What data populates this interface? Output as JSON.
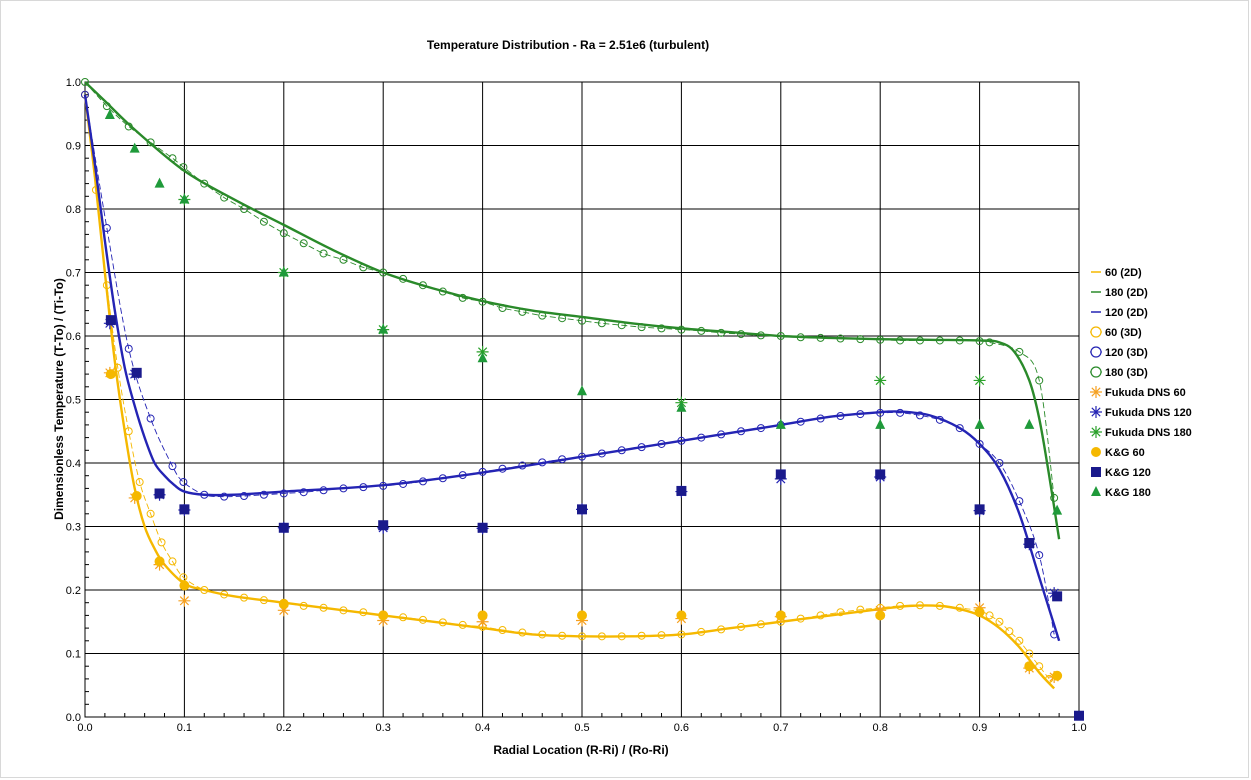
{
  "chart_data": {
    "type": "line",
    "title": "Temperature Distribution    -   Ra = 2.51e6 (turbulent)",
    "xlabel": "Radial Location (R-Ri) / (Ro-Ri)",
    "ylabel": "Dimensionless Temperature (T-To) / (Ti-To)",
    "xlim": [
      0,
      1
    ],
    "ylim": [
      0,
      1
    ],
    "x_ticks": [
      "0.0",
      "0.1",
      "0.2",
      "0.3",
      "0.4",
      "0.5",
      "0.6",
      "0.7",
      "0.8",
      "0.9",
      "1.0"
    ],
    "y_ticks": [
      "0.0",
      "0.1",
      "0.2",
      "0.3",
      "0.4",
      "0.5",
      "0.6",
      "0.7",
      "0.8",
      "0.9",
      "1.0"
    ],
    "grid": true,
    "legend_position": "right",
    "series": [
      {
        "name": "60 (2D)",
        "kind": "line",
        "color": "#f5b800",
        "x": [
          0,
          0.01,
          0.02,
          0.03,
          0.04,
          0.05,
          0.06,
          0.07,
          0.08,
          0.1,
          0.12,
          0.15,
          0.2,
          0.3,
          0.4,
          0.45,
          0.5,
          0.55,
          0.6,
          0.65,
          0.7,
          0.75,
          0.8,
          0.83,
          0.86,
          0.88,
          0.9,
          0.92,
          0.94,
          0.96,
          0.975
        ],
        "y": [
          0.98,
          0.85,
          0.7,
          0.56,
          0.45,
          0.36,
          0.3,
          0.265,
          0.24,
          0.21,
          0.2,
          0.19,
          0.18,
          0.16,
          0.14,
          0.13,
          0.127,
          0.127,
          0.13,
          0.14,
          0.15,
          0.16,
          0.17,
          0.175,
          0.175,
          0.17,
          0.16,
          0.14,
          0.11,
          0.07,
          0.045
        ]
      },
      {
        "name": "180 (2D)",
        "kind": "line",
        "color": "#2a8a2a",
        "x": [
          0,
          0.02,
          0.05,
          0.1,
          0.15,
          0.2,
          0.25,
          0.3,
          0.35,
          0.4,
          0.45,
          0.5,
          0.55,
          0.6,
          0.65,
          0.7,
          0.75,
          0.8,
          0.85,
          0.9,
          0.92,
          0.935,
          0.95,
          0.96,
          0.97,
          0.98
        ],
        "y": [
          1.0,
          0.97,
          0.925,
          0.86,
          0.815,
          0.775,
          0.735,
          0.7,
          0.675,
          0.655,
          0.64,
          0.63,
          0.62,
          0.612,
          0.606,
          0.6,
          0.597,
          0.595,
          0.594,
          0.593,
          0.59,
          0.575,
          0.53,
          0.47,
          0.38,
          0.28
        ]
      },
      {
        "name": "120 (2D)",
        "kind": "line",
        "color": "#2424b4",
        "x": [
          0,
          0.01,
          0.02,
          0.03,
          0.04,
          0.05,
          0.06,
          0.07,
          0.08,
          0.09,
          0.1,
          0.12,
          0.15,
          0.2,
          0.3,
          0.4,
          0.5,
          0.6,
          0.7,
          0.75,
          0.8,
          0.82,
          0.85,
          0.88,
          0.9,
          0.92,
          0.94,
          0.96,
          0.98
        ],
        "y": [
          0.98,
          0.87,
          0.75,
          0.64,
          0.55,
          0.49,
          0.44,
          0.4,
          0.38,
          0.365,
          0.355,
          0.35,
          0.35,
          0.355,
          0.365,
          0.385,
          0.41,
          0.435,
          0.46,
          0.473,
          0.48,
          0.481,
          0.475,
          0.455,
          0.43,
          0.39,
          0.32,
          0.22,
          0.12
        ]
      },
      {
        "name": "60 (3D)",
        "kind": "dashed-circles",
        "color": "#f5b800",
        "x": [
          0,
          0.011,
          0.022,
          0.033,
          0.044,
          0.055,
          0.066,
          0.077,
          0.088,
          0.099,
          0.12,
          0.14,
          0.16,
          0.18,
          0.2,
          0.22,
          0.24,
          0.26,
          0.28,
          0.3,
          0.32,
          0.34,
          0.36,
          0.38,
          0.4,
          0.42,
          0.44,
          0.46,
          0.48,
          0.5,
          0.52,
          0.54,
          0.56,
          0.58,
          0.6,
          0.62,
          0.64,
          0.66,
          0.68,
          0.7,
          0.72,
          0.74,
          0.76,
          0.78,
          0.8,
          0.82,
          0.84,
          0.86,
          0.88,
          0.9,
          0.91,
          0.92,
          0.93,
          0.94,
          0.95,
          0.96,
          0.97
        ],
        "y": [
          0.98,
          0.83,
          0.68,
          0.55,
          0.45,
          0.37,
          0.32,
          0.275,
          0.245,
          0.22,
          0.2,
          0.193,
          0.188,
          0.184,
          0.18,
          0.175,
          0.172,
          0.168,
          0.165,
          0.16,
          0.157,
          0.153,
          0.149,
          0.145,
          0.142,
          0.137,
          0.133,
          0.13,
          0.128,
          0.127,
          0.127,
          0.127,
          0.128,
          0.129,
          0.13,
          0.134,
          0.138,
          0.142,
          0.146,
          0.15,
          0.155,
          0.16,
          0.165,
          0.169,
          0.172,
          0.175,
          0.176,
          0.175,
          0.172,
          0.167,
          0.16,
          0.15,
          0.135,
          0.12,
          0.1,
          0.08,
          0.06
        ]
      },
      {
        "name": "120 (3D)",
        "kind": "dashed-circles",
        "color": "#2424b4",
        "x": [
          0,
          0.022,
          0.044,
          0.066,
          0.088,
          0.099,
          0.12,
          0.14,
          0.16,
          0.18,
          0.2,
          0.22,
          0.24,
          0.26,
          0.28,
          0.3,
          0.32,
          0.34,
          0.36,
          0.38,
          0.4,
          0.42,
          0.44,
          0.46,
          0.48,
          0.5,
          0.52,
          0.54,
          0.56,
          0.58,
          0.6,
          0.62,
          0.64,
          0.66,
          0.68,
          0.7,
          0.72,
          0.74,
          0.76,
          0.78,
          0.8,
          0.82,
          0.84,
          0.86,
          0.88,
          0.9,
          0.92,
          0.94,
          0.96,
          0.975
        ],
        "y": [
          0.98,
          0.77,
          0.58,
          0.47,
          0.395,
          0.37,
          0.35,
          0.347,
          0.348,
          0.35,
          0.352,
          0.354,
          0.357,
          0.36,
          0.362,
          0.364,
          0.367,
          0.371,
          0.376,
          0.381,
          0.386,
          0.391,
          0.396,
          0.401,
          0.406,
          0.41,
          0.415,
          0.42,
          0.425,
          0.43,
          0.435,
          0.44,
          0.445,
          0.45,
          0.455,
          0.46,
          0.465,
          0.47,
          0.474,
          0.477,
          0.479,
          0.479,
          0.475,
          0.468,
          0.455,
          0.43,
          0.4,
          0.34,
          0.255,
          0.13
        ]
      },
      {
        "name": "180 (3D)",
        "kind": "dashed-circles",
        "color": "#2a8a2a",
        "x": [
          0,
          0.022,
          0.044,
          0.066,
          0.088,
          0.099,
          0.12,
          0.14,
          0.16,
          0.18,
          0.2,
          0.22,
          0.24,
          0.26,
          0.28,
          0.3,
          0.32,
          0.34,
          0.36,
          0.38,
          0.4,
          0.42,
          0.44,
          0.46,
          0.48,
          0.5,
          0.52,
          0.54,
          0.56,
          0.58,
          0.6,
          0.62,
          0.64,
          0.66,
          0.68,
          0.7,
          0.72,
          0.74,
          0.76,
          0.78,
          0.8,
          0.82,
          0.84,
          0.86,
          0.88,
          0.9,
          0.91,
          0.94,
          0.96,
          0.975
        ],
        "y": [
          1.0,
          0.962,
          0.93,
          0.905,
          0.88,
          0.866,
          0.84,
          0.818,
          0.8,
          0.78,
          0.762,
          0.746,
          0.73,
          0.72,
          0.708,
          0.7,
          0.69,
          0.68,
          0.67,
          0.66,
          0.654,
          0.644,
          0.638,
          0.632,
          0.628,
          0.624,
          0.62,
          0.617,
          0.614,
          0.612,
          0.61,
          0.608,
          0.605,
          0.603,
          0.601,
          0.6,
          0.598,
          0.597,
          0.596,
          0.595,
          0.594,
          0.593,
          0.593,
          0.593,
          0.593,
          0.592,
          0.59,
          0.575,
          0.53,
          0.345
        ]
      },
      {
        "name": "Fukuda DNS 60",
        "kind": "asterisk",
        "color": "#f5a020",
        "x": [
          0.025,
          0.05,
          0.075,
          0.1,
          0.2,
          0.3,
          0.4,
          0.5,
          0.6,
          0.7,
          0.8,
          0.9,
          0.95,
          0.975
        ],
        "y": [
          0.542,
          0.345,
          0.24,
          0.183,
          0.168,
          0.152,
          0.15,
          0.152,
          0.155,
          0.158,
          0.168,
          0.172,
          0.077,
          0.063
        ]
      },
      {
        "name": "Fukuda DNS 120",
        "kind": "asterisk",
        "color": "#2424b4",
        "x": [
          0.025,
          0.05,
          0.075,
          0.1,
          0.2,
          0.3,
          0.4,
          0.5,
          0.6,
          0.7,
          0.8,
          0.9,
          0.95,
          0.975
        ],
        "y": [
          0.62,
          0.54,
          0.35,
          0.326,
          0.298,
          0.298,
          0.297,
          0.327,
          0.355,
          0.375,
          0.378,
          0.325,
          0.272,
          0.195
        ]
      },
      {
        "name": "Fukuda DNS 180",
        "kind": "asterisk",
        "color": "#2aa02a",
        "x": [
          0.1,
          0.2,
          0.3,
          0.4,
          0.6,
          0.8,
          0.9
        ],
        "y": [
          0.815,
          0.7,
          0.61,
          0.575,
          0.495,
          0.53,
          0.53
        ]
      },
      {
        "name": "K&G 60",
        "kind": "filled-circle",
        "color": "#f5b800",
        "x": [
          0.026,
          0.052,
          0.075,
          0.1,
          0.2,
          0.3,
          0.4,
          0.5,
          0.6,
          0.7,
          0.8,
          0.9,
          0.95,
          0.978
        ],
        "y": [
          0.54,
          0.348,
          0.245,
          0.207,
          0.178,
          0.16,
          0.16,
          0.16,
          0.16,
          0.16,
          0.16,
          0.165,
          0.08,
          0.065
        ]
      },
      {
        "name": "K&G 120",
        "kind": "filled-square",
        "color": "#1a1a8c",
        "x": [
          0.026,
          0.052,
          0.075,
          0.1,
          0.2,
          0.3,
          0.4,
          0.5,
          0.6,
          0.7,
          0.8,
          0.9,
          0.95,
          0.978,
          1.0
        ],
        "y": [
          0.625,
          0.542,
          0.352,
          0.327,
          0.298,
          0.302,
          0.298,
          0.327,
          0.356,
          0.382,
          0.382,
          0.327,
          0.274,
          0.19,
          0.002
        ]
      },
      {
        "name": "K&G 180",
        "kind": "filled-triangle",
        "color": "#1f9a3a",
        "x": [
          0.025,
          0.05,
          0.075,
          0.1,
          0.2,
          0.3,
          0.4,
          0.5,
          0.6,
          0.7,
          0.8,
          0.9,
          0.95,
          0.978
        ],
        "y": [
          0.948,
          0.895,
          0.84,
          0.815,
          0.7,
          0.61,
          0.565,
          0.513,
          0.487,
          0.46,
          0.46,
          0.46,
          0.46,
          0.325
        ]
      }
    ]
  }
}
